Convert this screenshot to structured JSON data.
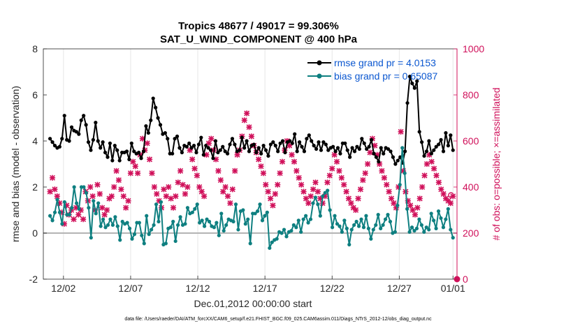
{
  "chart_data": {
    "type": "line",
    "title": "Tropics 48677 / 49017 = 99.306%",
    "subtitle": "SAT_U_WIND_COMPONENT @ 400 hPa",
    "xlabel": "Dec.01,2012 00:00:00 start",
    "ylabel": "rmse and bias (model - observation)",
    "ylabel_right": "# of obs: o=possible; ×=assimilated",
    "footnote": "data file: /Users/raeder/DAI/ATM_forcXX/CAM6_setup/f.e21.FHIST_BGC.f09_025.CAM6assim.011/Diags_NTrS_2012-12/obs_diag_output.nc",
    "xlim": [
      0.5,
      31.3
    ],
    "ylim": [
      -2,
      8
    ],
    "ylim_right": [
      0,
      1000
    ],
    "x_ticks": [
      2,
      7,
      12,
      17,
      22,
      27,
      31
    ],
    "x_tick_labels": [
      "12/02",
      "12/07",
      "12/12",
      "12/17",
      "12/22",
      "12/27",
      "01/01"
    ],
    "y_ticks": [
      -2,
      0,
      2,
      4,
      6,
      8
    ],
    "y_ticks_right": [
      0,
      200,
      400,
      600,
      800,
      1000
    ],
    "grid": "vertical",
    "legend_position": "top-right",
    "colors": {
      "rmse": "#000000",
      "bias": "#0e7f80",
      "obs": "#d0105a",
      "zero_line": "#b4b4b4",
      "legend_text": "#0b57d0"
    },
    "series": [
      {
        "name": "rmse grand pr = 4.0153",
        "axis": "left",
        "values": [
          4.1,
          3.95,
          3.8,
          3.7,
          3.75,
          4.1,
          5.1,
          4.05,
          4.0,
          4.6,
          4.45,
          4.4,
          4.3,
          4.9,
          5.1,
          4.7,
          3.95,
          3.6,
          4.05,
          4.8,
          4.0,
          3.7,
          3.95,
          3.5,
          3.3,
          3.9,
          3.15,
          3.8,
          3.6,
          3.15,
          3.5,
          3.5,
          3.55,
          3.2,
          3.9,
          3.55,
          3.45,
          3.5,
          3.25,
          3.55,
          4.65,
          4.35,
          4.9,
          5.85,
          5.45,
          5.0,
          4.7,
          4.3,
          4.35,
          4.1,
          3.45,
          3.45,
          4.1,
          4.2,
          3.7,
          3.5,
          3.8,
          3.75,
          3.9,
          3.7,
          3.8,
          3.5,
          3.85,
          4.15,
          3.4,
          3.8,
          3.7,
          3.6,
          3.25,
          4.0,
          3.5,
          3.6,
          3.75,
          3.55,
          3.45,
          3.85,
          4.1,
          3.85,
          3.55,
          3.6,
          4.15,
          3.7,
          4.0,
          3.55,
          3.8,
          3.85,
          3.5,
          3.7,
          3.45,
          3.8,
          3.6,
          3.35,
          3.85,
          3.95,
          3.8,
          3.55,
          3.9,
          4.0,
          3.5,
          3.95,
          4.0,
          3.9,
          4.3,
          3.55,
          3.95,
          3.75,
          3.55,
          4.1,
          4.25,
          4.0,
          3.8,
          3.65,
          3.95,
          3.6,
          3.95,
          3.85,
          3.6,
          3.7,
          3.75,
          3.55,
          3.7,
          3.45,
          3.9,
          3.9,
          3.6,
          3.3,
          3.7,
          3.55,
          3.75,
          3.65,
          4.1,
          3.9,
          3.65,
          3.75,
          4.05,
          3.45,
          3.3,
          3.1,
          3.7,
          3.45,
          3.7,
          3.65,
          3.55,
          3.3,
          3.0,
          3.15,
          3.3,
          3.05,
          3.55,
          5.65,
          6.8,
          6.5,
          6.3,
          6.6,
          4.4,
          3.95,
          3.35,
          3.55,
          4.0,
          3.45,
          3.6,
          3.75,
          3.85,
          4.05,
          3.55,
          4.35,
          3.8,
          4.25,
          3.6
        ]
      },
      {
        "name": "bias grand pr = 0.65087",
        "axis": "left",
        "values": [
          0.75,
          0.55,
          0.9,
          1.45,
          0.9,
          0.4,
          1.35,
          0.8,
          0.8,
          1.1,
          2.0,
          1.3,
          1.05,
          2.0,
          2.0,
          1.75,
          1.1,
          -0.2,
          1.4,
          0.85,
          1.3,
          0.3,
          0.6,
          0.25,
          0.35,
          0.6,
          0.35,
          0.7,
          0.3,
          -0.3,
          0.5,
          0.4,
          0.45,
          0.2,
          -0.25,
          -0.05,
          0.45,
          0.45,
          -0.1,
          -0.45,
          0.75,
          -0.05,
          0.15,
          0.35,
          1.25,
          0.5,
          1.35,
          -0.5,
          -0.45,
          0.2,
          0.25,
          0.5,
          -0.35,
          0.35,
          0.7,
          0.35,
          0.4,
          1.1,
          0.85,
          0.9,
          1.05,
          1.25,
          0.45,
          0.55,
          0.3,
          0.6,
          0.5,
          0.3,
          0.25,
          0.45,
          -0.1,
          0.85,
          0.1,
          0.35,
          0.6,
          0.55,
          0.5,
          1.25,
          0.15,
          0.95,
          1.0,
          0.4,
          0.6,
          -0.45,
          0.85,
          0.85,
          0.95,
          1.25,
          0.55,
          0.75,
          0.9,
          -0.65,
          -0.4,
          -0.3,
          -0.25,
          0.05,
          0.0,
          0.15,
          -0.15,
          0.05,
          0.1,
          0.35,
          0.25,
          0.55,
          0.05,
          0.6,
          0.75,
          0.45,
          0.6,
          1.3,
          1.55,
          1.25,
          0.75,
          1.6,
          1.75,
          1.85,
          1.0,
          0.25,
          0.75,
          0.4,
          0.3,
          0.05,
          0.55,
          0.2,
          -0.5,
          0.15,
          0.35,
          0.5,
          0.3,
          0.6,
          0.25,
          0.75,
          0.2,
          -0.25,
          0.15,
          0.35,
          0.8,
          0.2,
          0.35,
          0.6,
          0.8,
          0.5,
          0.0,
          0.05,
          1.2,
          2.1,
          3.7,
          2.6,
          1.05,
          0.05,
          0.25,
          0.1,
          0.2,
          0.6,
          0.35,
          0.05,
          0.25,
          0.15,
          0.85,
          0.55,
          0.2,
          0.95,
          0.65,
          0.25,
          0.6,
          1.05,
          0.15,
          -0.2
        ]
      },
      {
        "name": "obs assimilated",
        "axis": "right",
        "marker": "x",
        "values": [
          380,
          440,
          390,
          360,
          330,
          290,
          240,
          320,
          280,
          300,
          260,
          310,
          280,
          300,
          260,
          380,
          340,
          400,
          360,
          300,
          410,
          370,
          310,
          280,
          300,
          350,
          360,
          400,
          470,
          430,
          390,
          360,
          310,
          340,
          460,
          510,
          490,
          460,
          540,
          610,
          560,
          590,
          520,
          460,
          400,
          370,
          340,
          310,
          390,
          360,
          400,
          350,
          310,
          360,
          420,
          470,
          410,
          370,
          400,
          560,
          520,
          480,
          450,
          400,
          380,
          360,
          540,
          590,
          610,
          560,
          520,
          470,
          430,
          380,
          400,
          360,
          330,
          390,
          470,
          540,
          560,
          620,
          690,
          720,
          660,
          620,
          580,
          550,
          520,
          490,
          460,
          410,
          380,
          350,
          320,
          370,
          410,
          460,
          510,
          560,
          600,
          580,
          540,
          510,
          470,
          440,
          410,
          380,
          350,
          330,
          360,
          390,
          420,
          380,
          350,
          330,
          360,
          420,
          450,
          480,
          540,
          510,
          470,
          440,
          410,
          380,
          350,
          330,
          310,
          300,
          350,
          390,
          430,
          460,
          500,
          550,
          610,
          580,
          540,
          500,
          470,
          440,
          410,
          380,
          350,
          330,
          310,
          400,
          640,
          470,
          380,
          340,
          320,
          300,
          280,
          310,
          350,
          400,
          450,
          500,
          540,
          510,
          480,
          450,
          420,
          390,
          370,
          350,
          340,
          330,
          360
        ]
      },
      {
        "name": "obs possible",
        "axis": "right",
        "marker": "o",
        "values": [
          365
        ]
      }
    ],
    "legend": [
      "rmse grand pr = 4.0153",
      "bias grand pr = 0.65087"
    ]
  }
}
